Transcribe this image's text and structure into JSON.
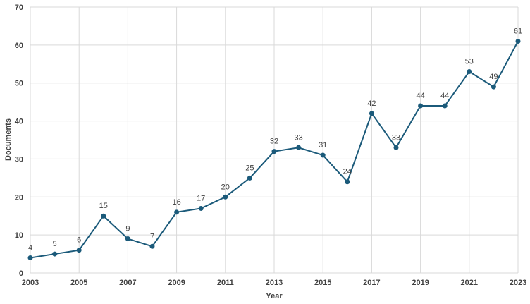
{
  "chart_data": {
    "type": "line",
    "xlabel": "Year",
    "ylabel": "Documents",
    "ylim": [
      0,
      70
    ],
    "yticks": [
      0,
      10,
      20,
      30,
      40,
      50,
      60,
      70
    ],
    "xlim": [
      2003,
      2023
    ],
    "xticks": [
      2003,
      2005,
      2007,
      2009,
      2011,
      2013,
      2015,
      2017,
      2019,
      2021,
      2023
    ],
    "grid": true,
    "legend": "none",
    "line_color": "#1b5a7a",
    "x": [
      2003,
      2004,
      2005,
      2006,
      2007,
      2008,
      2009,
      2010,
      2011,
      2012,
      2013,
      2014,
      2015,
      2016,
      2017,
      2018,
      2019,
      2020,
      2021,
      2022,
      2023
    ],
    "values": [
      4,
      5,
      6,
      15,
      9,
      7,
      16,
      17,
      20,
      25,
      32,
      33,
      31,
      24,
      42,
      33,
      44,
      44,
      53,
      49,
      61
    ],
    "data_labels": [
      "4",
      "5",
      "6",
      "15",
      "9",
      "7",
      "16",
      "17",
      "20",
      "25",
      "32",
      "33",
      "31",
      "24",
      "42",
      "33",
      "44",
      "44",
      "53",
      "49",
      "61"
    ]
  }
}
